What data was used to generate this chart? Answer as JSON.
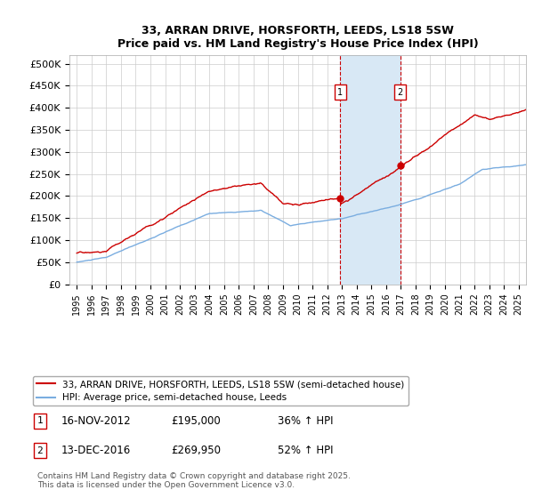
{
  "title": "33, ARRAN DRIVE, HORSFORTH, LEEDS, LS18 5SW",
  "subtitle": "Price paid vs. HM Land Registry's House Price Index (HPI)",
  "legend_line1": "33, ARRAN DRIVE, HORSFORTH, LEEDS, LS18 5SW (semi-detached house)",
  "legend_line2": "HPI: Average price, semi-detached house, Leeds",
  "purchase1_label": "1",
  "purchase1_date": "16-NOV-2012",
  "purchase1_price": 195000,
  "purchase1_price_str": "£195,000",
  "purchase1_hpi": "36% ↑ HPI",
  "purchase2_label": "2",
  "purchase2_date": "13-DEC-2016",
  "purchase2_price": 269950,
  "purchase2_price_str": "£269,950",
  "purchase2_hpi": "52% ↑ HPI",
  "purchase1_x": 2012.88,
  "purchase2_x": 2016.95,
  "footer": "Contains HM Land Registry data © Crown copyright and database right 2025.\nThis data is licensed under the Open Government Licence v3.0.",
  "ylim": [
    0,
    520000
  ],
  "xlim": [
    1994.5,
    2025.5
  ],
  "yticks": [
    0,
    50000,
    100000,
    150000,
    200000,
    250000,
    300000,
    350000,
    400000,
    450000,
    500000
  ],
  "ytick_labels": [
    "£0",
    "£50K",
    "£100K",
    "£150K",
    "£200K",
    "£250K",
    "£300K",
    "£350K",
    "£400K",
    "£450K",
    "£500K"
  ],
  "xticks": [
    1995,
    1996,
    1997,
    1998,
    1999,
    2000,
    2001,
    2002,
    2003,
    2004,
    2005,
    2006,
    2007,
    2008,
    2009,
    2010,
    2011,
    2012,
    2013,
    2014,
    2015,
    2016,
    2017,
    2018,
    2019,
    2020,
    2021,
    2022,
    2023,
    2024,
    2025
  ],
  "hpi_color": "#7aade0",
  "price_color": "#cc0000",
  "shade_color": "#d8e8f5",
  "bg_color": "#ffffff",
  "grid_color": "#cccccc"
}
